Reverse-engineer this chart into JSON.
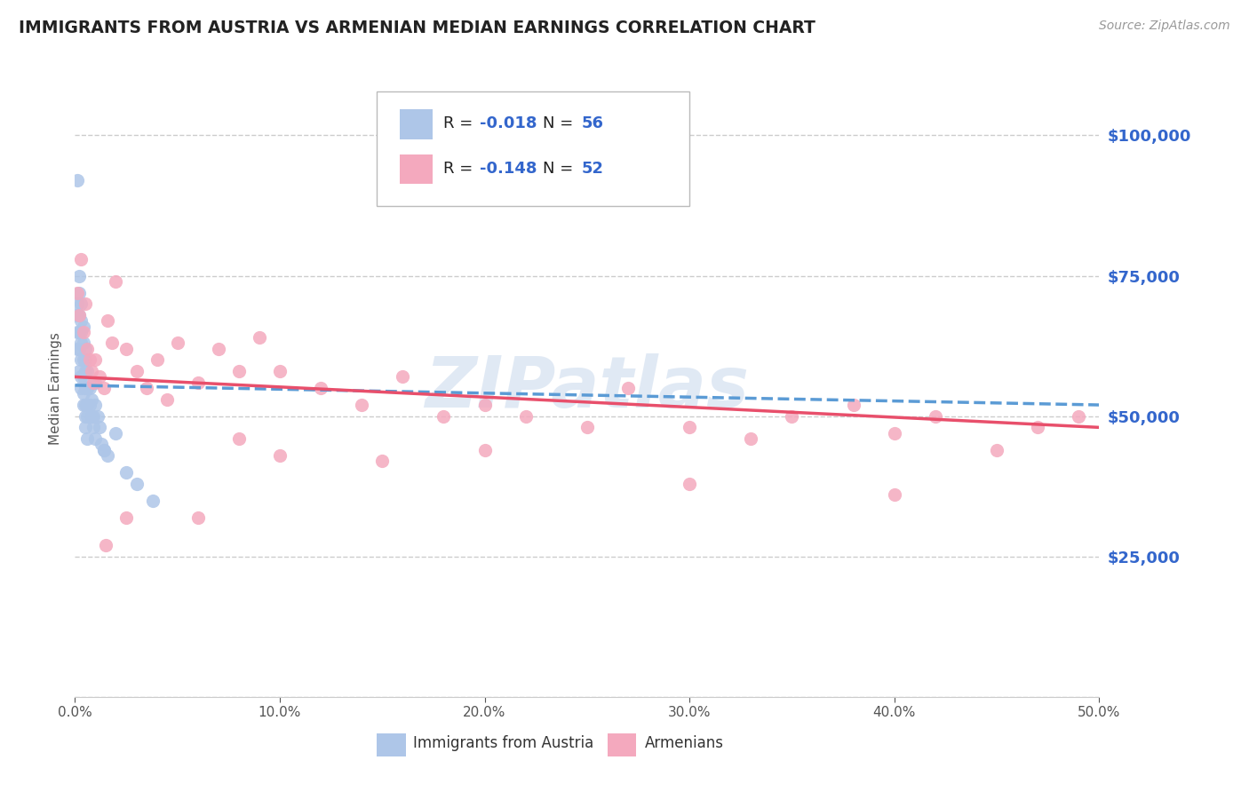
{
  "title": "IMMIGRANTS FROM AUSTRIA VS ARMENIAN MEDIAN EARNINGS CORRELATION CHART",
  "source_text": "Source: ZipAtlas.com",
  "ylabel": "Median Earnings",
  "xlim": [
    0.0,
    0.5
  ],
  "ylim": [
    0,
    110000
  ],
  "yticks": [
    0,
    25000,
    50000,
    75000,
    100000
  ],
  "ytick_labels": [
    "",
    "$25,000",
    "$50,000",
    "$75,000",
    "$100,000"
  ],
  "xticks": [
    0.0,
    0.1,
    0.2,
    0.3,
    0.4,
    0.5
  ],
  "xtick_labels": [
    "0.0%",
    "10.0%",
    "20.0%",
    "30.0%",
    "40.0%",
    "50.0%"
  ],
  "austria_color": "#aec6e8",
  "armenian_color": "#f4a9be",
  "austria_line_color": "#5b9bd5",
  "armenian_line_color": "#e84f6b",
  "austria_R": -0.018,
  "austria_N": 56,
  "armenian_R": -0.148,
  "armenian_N": 52,
  "value_color": "#3366cc",
  "watermark": "ZIPatlas",
  "background_color": "#ffffff",
  "grid_color": "#cccccc",
  "austria_x": [
    0.001,
    0.001,
    0.001,
    0.001,
    0.001,
    0.002,
    0.002,
    0.002,
    0.002,
    0.002,
    0.002,
    0.003,
    0.003,
    0.003,
    0.003,
    0.003,
    0.003,
    0.003,
    0.004,
    0.004,
    0.004,
    0.004,
    0.004,
    0.004,
    0.005,
    0.005,
    0.005,
    0.005,
    0.005,
    0.005,
    0.005,
    0.006,
    0.006,
    0.006,
    0.006,
    0.006,
    0.007,
    0.007,
    0.008,
    0.008,
    0.009,
    0.009,
    0.01,
    0.01,
    0.011,
    0.012,
    0.013,
    0.014,
    0.016,
    0.02,
    0.025,
    0.03,
    0.038,
    0.01,
    0.014,
    0.006
  ],
  "austria_y": [
    92000,
    70000,
    68000,
    65000,
    62000,
    75000,
    72000,
    68000,
    65000,
    62000,
    58000,
    70000,
    67000,
    65000,
    63000,
    60000,
    57000,
    55000,
    66000,
    63000,
    60000,
    57000,
    54000,
    52000,
    62000,
    60000,
    58000,
    55000,
    52000,
    50000,
    48000,
    58000,
    55000,
    52000,
    50000,
    46000,
    55000,
    52000,
    53000,
    50000,
    50000,
    48000,
    52000,
    46000,
    50000,
    48000,
    45000,
    44000,
    43000,
    47000,
    40000,
    38000,
    35000,
    56000,
    44000,
    55000
  ],
  "armenian_x": [
    0.001,
    0.002,
    0.003,
    0.004,
    0.005,
    0.006,
    0.007,
    0.008,
    0.009,
    0.01,
    0.012,
    0.014,
    0.016,
    0.018,
    0.02,
    0.025,
    0.03,
    0.035,
    0.04,
    0.045,
    0.05,
    0.06,
    0.07,
    0.08,
    0.09,
    0.1,
    0.12,
    0.14,
    0.16,
    0.18,
    0.2,
    0.22,
    0.25,
    0.27,
    0.3,
    0.33,
    0.35,
    0.38,
    0.4,
    0.42,
    0.45,
    0.47,
    0.49,
    0.015,
    0.025,
    0.06,
    0.08,
    0.1,
    0.15,
    0.2,
    0.3,
    0.4
  ],
  "armenian_y": [
    72000,
    68000,
    78000,
    65000,
    70000,
    62000,
    60000,
    58000,
    56000,
    60000,
    57000,
    55000,
    67000,
    63000,
    74000,
    62000,
    58000,
    55000,
    60000,
    53000,
    63000,
    56000,
    62000,
    58000,
    64000,
    58000,
    55000,
    52000,
    57000,
    50000,
    52000,
    50000,
    48000,
    55000,
    48000,
    46000,
    50000,
    52000,
    47000,
    50000,
    44000,
    48000,
    50000,
    27000,
    32000,
    32000,
    46000,
    43000,
    42000,
    44000,
    38000,
    36000
  ]
}
